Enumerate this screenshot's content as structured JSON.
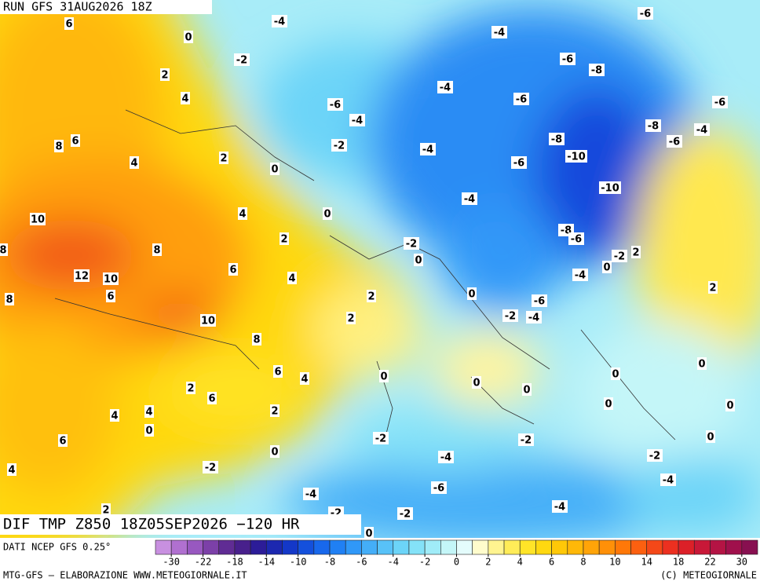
{
  "header": {
    "run": "RUN GFS 31AUG2026 18Z"
  },
  "map": {
    "title": "DIF TMP Z850 18Z05SEP2026 −120 HR",
    "contour_labels": [
      6,
      0,
      -4,
      -4,
      -6,
      -2,
      2,
      -6,
      -8,
      -4,
      4,
      -6,
      -6,
      -6,
      -4,
      -8,
      -4,
      8,
      6,
      -2,
      -8,
      -6,
      4,
      2,
      -4,
      -10,
      0,
      -6,
      -10,
      -4,
      0,
      4,
      10,
      2,
      -2,
      8,
      8,
      -8,
      -6,
      -2,
      2,
      0,
      6,
      12,
      10,
      4,
      -4,
      0,
      6,
      8,
      2,
      0,
      -6,
      2,
      10,
      2,
      -2,
      -4,
      8,
      6,
      4,
      0,
      0,
      0,
      0,
      0,
      2,
      6,
      4,
      4,
      2,
      0,
      0,
      0,
      -2,
      -2,
      6,
      0,
      0,
      -4,
      -2,
      4,
      -2,
      -4,
      -6,
      -4,
      -4,
      2,
      -2,
      -2,
      0
    ]
  },
  "legend": {
    "source": "DATI NCEP GFS 0.25°",
    "ticks": [
      -30,
      -22,
      -18,
      -14,
      -10,
      -8,
      -6,
      -4,
      -2,
      0,
      2,
      4,
      6,
      8,
      10,
      14,
      18,
      22,
      30
    ],
    "colors": [
      "#c890e0",
      "#b070d0",
      "#9858c0",
      "#7c40a8",
      "#602c94",
      "#48208c",
      "#2c1c98",
      "#1c28b0",
      "#1438c8",
      "#1450dc",
      "#1868ec",
      "#2080f4",
      "#3098f8",
      "#44aef8",
      "#58c2f8",
      "#6cd4f8",
      "#84e2f8",
      "#a0ecf8",
      "#c4f6f8",
      "#e4fcfc",
      "#fffccc",
      "#fff490",
      "#ffec58",
      "#ffe428",
      "#ffd810",
      "#ffc808",
      "#ffb808",
      "#ffa408",
      "#ff9008",
      "#ff7808",
      "#fc6010",
      "#f44818",
      "#ec3020",
      "#dc2028",
      "#c81838",
      "#b41444",
      "#a0104c",
      "#881050"
    ]
  },
  "footer": {
    "left": "MTG-GFS — ELABORAZIONE WWW.METEOGIORNALE.IT",
    "right": "(C) METEOGIORNALE"
  }
}
